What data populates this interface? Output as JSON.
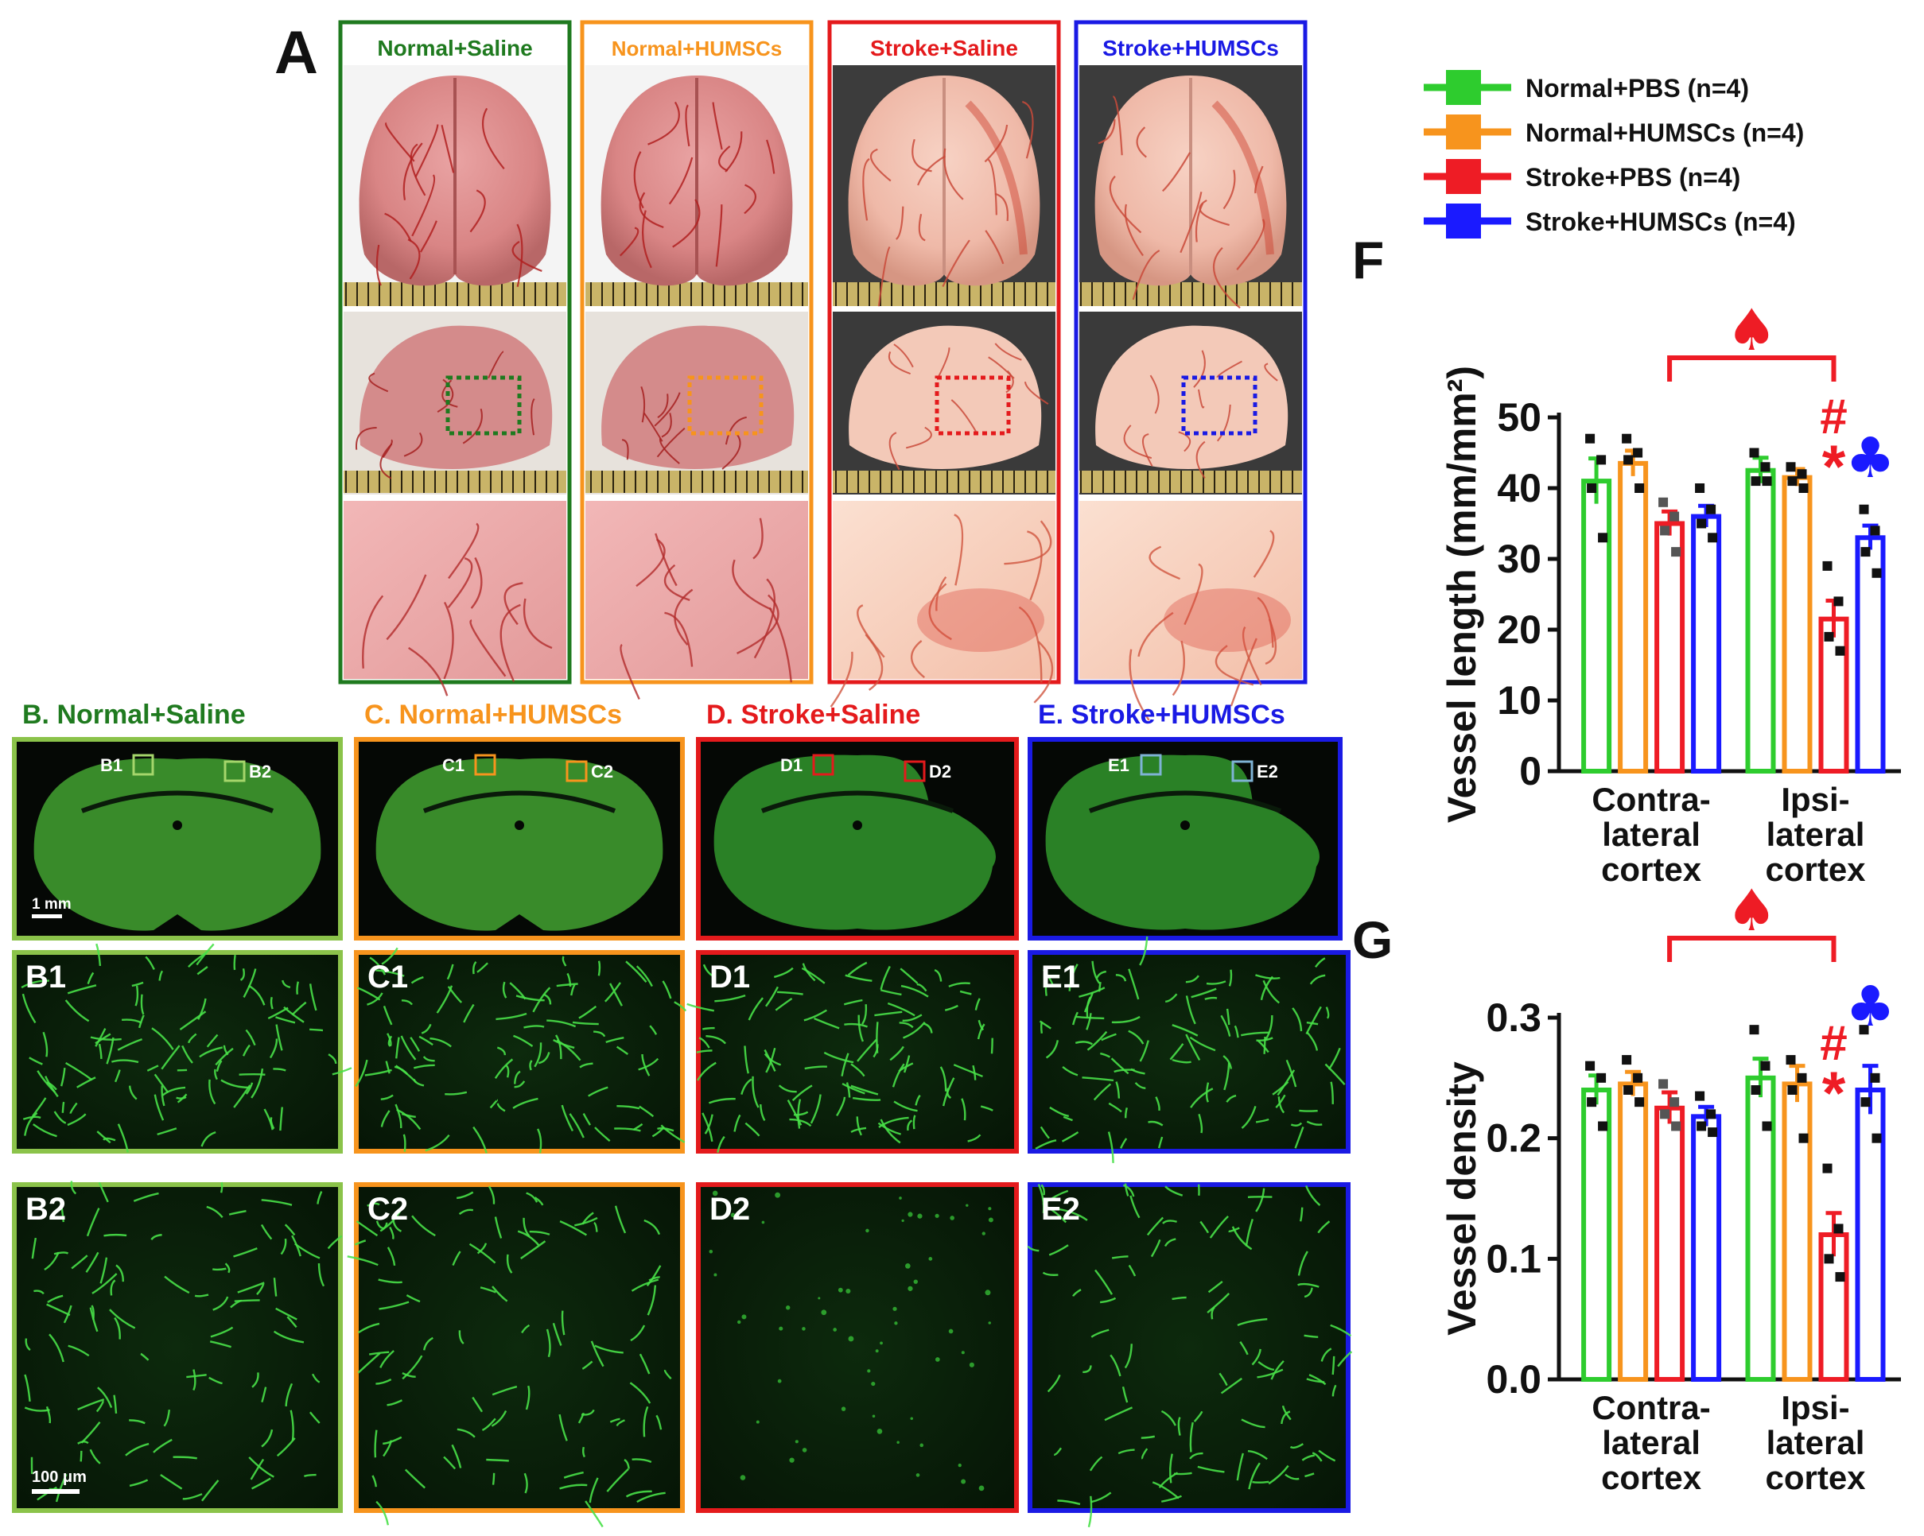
{
  "panel_a": {
    "letter": "A",
    "columns": [
      {
        "title": "Normal+Saline",
        "color": "#1f7a1f"
      },
      {
        "title": "Normal+HUMSCs",
        "color": "#f7941d"
      },
      {
        "title": "Stroke+Saline",
        "color": "#e41a1c"
      },
      {
        "title": "Stroke+HUMSCs",
        "color": "#1a1ae4"
      }
    ]
  },
  "sections": [
    {
      "title": "B. Normal+Saline",
      "color": "#1f7a1f",
      "frame_color": "#8bc34a",
      "roi": [
        "B1",
        "B2"
      ],
      "roi_color": "#a5d66b",
      "tiles": [
        "B1",
        "B2"
      ]
    },
    {
      "title": "C. Normal+HUMSCs",
      "color": "#f7941d",
      "frame_color": "#f7941d",
      "roi": [
        "C1",
        "C2"
      ],
      "roi_color": "#f7941d",
      "tiles": [
        "C1",
        "C2"
      ]
    },
    {
      "title": "D. Stroke+Saline",
      "color": "#e41a1c",
      "frame_color": "#e41a1c",
      "roi": [
        "D1",
        "D2"
      ],
      "roi_color": "#e41a1c",
      "tiles": [
        "D1",
        "D2"
      ]
    },
    {
      "title": "E. Stroke+HUMSCs",
      "color": "#1a1ae4",
      "frame_color": "#1a1ae4",
      "roi": [
        "E1",
        "E2"
      ],
      "roi_color": "#7fb3d5",
      "tiles": [
        "E1",
        "E2"
      ]
    }
  ],
  "scale_bars": {
    "section": "1 mm",
    "tile": "100 μm"
  },
  "legend": [
    {
      "label": "Normal+PBS (n=4)",
      "color": "#2ecc2e"
    },
    {
      "label": "Normal+HUMSCs (n=4)",
      "color": "#f7941d"
    },
    {
      "label": "Stroke+PBS (n=4)",
      "color": "#ee1c25"
    },
    {
      "label": "Stroke+HUMSCs (n=4)",
      "color": "#1a1aff"
    }
  ],
  "chart_data": [
    {
      "type": "bar",
      "panel": "F",
      "ylabel": "Vessel length (mm/mm²)",
      "ylim": [
        0,
        50
      ],
      "yticks": [
        "0",
        "10",
        "20",
        "30",
        "40",
        "50"
      ],
      "categories": [
        "Contra-\nlateral\ncortex",
        "Ipsi-\nlateral\ncortex"
      ],
      "series": [
        {
          "name": "Normal+PBS (n=4)",
          "color": "#2ecc2e",
          "values": [
            41,
            42.5
          ],
          "sem": [
            3.2,
            1.8
          ],
          "points": [
            [
              47,
              44,
              40,
              33
            ],
            [
              45,
              43,
              41,
              41
            ]
          ]
        },
        {
          "name": "Normal+HUMSCs (n=4)",
          "color": "#f7941d",
          "values": [
            43.5,
            41.5
          ],
          "sem": [
            1.8,
            1.2
          ],
          "points": [
            [
              47,
              45,
              44,
              40
            ],
            [
              43,
              42,
              41,
              40
            ]
          ]
        },
        {
          "name": "Stroke+PBS (n=4)",
          "color": "#ee1c25",
          "values": [
            35,
            21.5
          ],
          "sem": [
            1.7,
            2.6
          ],
          "points": [
            [
              38,
              36,
              34,
              31
            ],
            [
              29,
              24,
              19,
              17
            ]
          ]
        },
        {
          "name": "Stroke+HUMSCs (n=4)",
          "color": "#1a1aff",
          "values": [
            36,
            33
          ],
          "sem": [
            1.5,
            1.7
          ],
          "points": [
            [
              40,
              37,
              35,
              33
            ],
            [
              37,
              34,
              31,
              28
            ]
          ]
        }
      ],
      "annotations": {
        "hash": "#",
        "star": "*",
        "club": "♣",
        "spade": "♠"
      }
    },
    {
      "type": "bar",
      "panel": "G",
      "ylabel": "Vessel density",
      "ylim": [
        0,
        0.3
      ],
      "yticks": [
        "0.0",
        "0.1",
        "0.2",
        "0.3"
      ],
      "categories": [
        "Contra-\nlateral\ncortex",
        "Ipsi-\nlateral\ncortex"
      ],
      "series": [
        {
          "name": "Normal+PBS (n=4)",
          "color": "#2ecc2e",
          "values": [
            0.24,
            0.25
          ],
          "sem": [
            0.012,
            0.016
          ],
          "points": [
            [
              0.26,
              0.25,
              0.23,
              0.21
            ],
            [
              0.29,
              0.26,
              0.24,
              0.21
            ]
          ]
        },
        {
          "name": "Normal+HUMSCs (n=4)",
          "color": "#f7941d",
          "values": [
            0.245,
            0.245
          ],
          "sem": [
            0.01,
            0.015
          ],
          "points": [
            [
              0.265,
              0.25,
              0.24,
              0.23
            ],
            [
              0.265,
              0.25,
              0.24,
              0.2
            ]
          ]
        },
        {
          "name": "Stroke+PBS (n=4)",
          "color": "#ee1c25",
          "values": [
            0.225,
            0.12
          ],
          "sem": [
            0.013,
            0.018
          ],
          "points": [
            [
              0.245,
              0.23,
              0.22,
              0.21
            ],
            [
              0.175,
              0.125,
              0.1,
              0.085
            ]
          ]
        },
        {
          "name": "Stroke+HUMSCs (n=4)",
          "color": "#1a1aff",
          "values": [
            0.218,
            0.24
          ],
          "sem": [
            0.008,
            0.02
          ],
          "points": [
            [
              0.235,
              0.22,
              0.21,
              0.205
            ],
            [
              0.29,
              0.25,
              0.23,
              0.2
            ]
          ]
        }
      ],
      "annotations": {
        "hash": "#",
        "star": "*",
        "club": "♣",
        "spade": "♠"
      }
    }
  ]
}
